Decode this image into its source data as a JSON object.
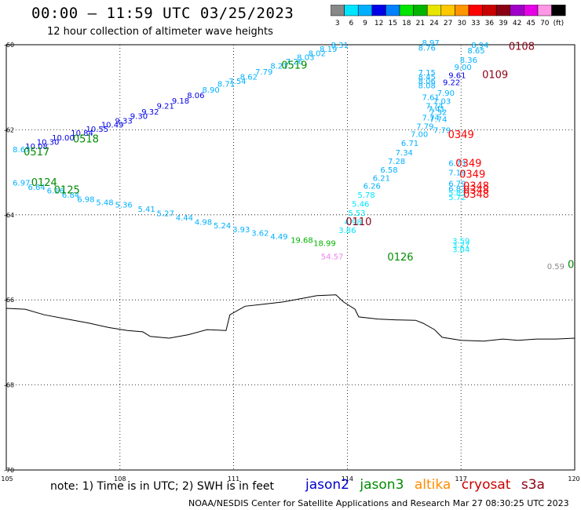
{
  "header": {
    "title": "00:00 – 11:59 UTC 03/25/2023",
    "subtitle": "12 hour collection of altimeter wave heights"
  },
  "color_scale": {
    "colors": [
      "#888888",
      "#00e5ff",
      "#00b0ff",
      "#0000e6",
      "#0082ff",
      "#00e600",
      "#00b400",
      "#e6e600",
      "#ffc800",
      "#ff9600",
      "#ff0000",
      "#c80000",
      "#8c0014",
      "#a000c8",
      "#e600e6",
      "#ff96e6",
      "#000000"
    ],
    "labels": [
      "3",
      "6",
      "9",
      "12",
      "15",
      "18",
      "21",
      "24",
      "27",
      "30",
      "33",
      "36",
      "39",
      "42",
      "45",
      "70",
      "(ft)"
    ]
  },
  "axes": {
    "x_ticks": [
      "105",
      "108",
      "111",
      "114",
      "117",
      "120"
    ],
    "y_ticks": [
      "-60",
      "-62",
      "-64",
      "-66",
      "-68",
      "-70"
    ]
  },
  "chart_data": {
    "type": "scatter",
    "x_unit": "longitude E",
    "y_unit": "latitude",
    "xlim": [
      105,
      120
    ],
    "ylim": [
      -70,
      -60
    ],
    "points": [
      {
        "x": 113.8,
        "y": -60.07,
        "label": "8.31",
        "color": "#00b0ff"
      },
      {
        "x": 113.5,
        "y": -60.17,
        "label": "8.19",
        "color": "#00b0ff"
      },
      {
        "x": 113.2,
        "y": -60.27,
        "label": "8.02",
        "color": "#00b0ff"
      },
      {
        "x": 112.9,
        "y": -60.36,
        "label": "8.03",
        "color": "#00b0ff"
      },
      {
        "x": 112.6,
        "y": -60.46,
        "label": "7.26",
        "color": "#00b0ff"
      },
      {
        "x": 112.2,
        "y": -60.56,
        "label": "8.21",
        "color": "#00b0ff"
      },
      {
        "x": 111.8,
        "y": -60.7,
        "label": "7.79",
        "color": "#00b0ff"
      },
      {
        "x": 111.4,
        "y": -60.82,
        "label": "8.62",
        "color": "#00b0ff"
      },
      {
        "x": 111.1,
        "y": -60.92,
        "label": "7.54",
        "color": "#00b0ff"
      },
      {
        "x": 110.8,
        "y": -60.99,
        "label": "8.71",
        "color": "#00b0ff"
      },
      {
        "x": 110.4,
        "y": -61.13,
        "label": "8.90",
        "color": "#00b0ff"
      },
      {
        "x": 110.0,
        "y": -61.25,
        "label": "8.06",
        "color": "#0000e6"
      },
      {
        "x": 109.6,
        "y": -61.38,
        "label": "9.18",
        "color": "#0000e6"
      },
      {
        "x": 109.2,
        "y": -61.5,
        "label": "9.21",
        "color": "#0000e6"
      },
      {
        "x": 108.8,
        "y": -61.64,
        "label": "9.32",
        "color": "#0000e6"
      },
      {
        "x": 108.5,
        "y": -61.74,
        "label": "9.30",
        "color": "#0000e6"
      },
      {
        "x": 108.1,
        "y": -61.85,
        "label": "9.33",
        "color": "#0000e6"
      },
      {
        "x": 107.8,
        "y": -61.95,
        "label": "10.49",
        "color": "#0000e6"
      },
      {
        "x": 107.4,
        "y": -62.05,
        "label": "10.55",
        "color": "#0000e6"
      },
      {
        "x": 107.0,
        "y": -62.14,
        "label": "10.84",
        "color": "#0000e6"
      },
      {
        "x": 106.5,
        "y": -62.25,
        "label": "10.00",
        "color": "#0000e6"
      },
      {
        "x": 106.1,
        "y": -62.35,
        "label": "10.30",
        "color": "#0000e6"
      },
      {
        "x": 105.8,
        "y": -62.45,
        "label": "10.08",
        "color": "#0000e6"
      },
      {
        "x": 105.4,
        "y": -62.53,
        "label": "8.67",
        "color": "#00b0ff"
      },
      {
        "x": 105.4,
        "y": -63.31,
        "label": "6.97",
        "color": "#00b0ff"
      },
      {
        "x": 105.8,
        "y": -63.41,
        "label": "6.64",
        "color": "#00b0ff"
      },
      {
        "x": 106.3,
        "y": -63.5,
        "label": "6.16",
        "color": "#00b0ff"
      },
      {
        "x": 106.7,
        "y": -63.6,
        "label": "6.84",
        "color": "#00b0ff"
      },
      {
        "x": 107.1,
        "y": -63.7,
        "label": "6.98",
        "color": "#00b0ff"
      },
      {
        "x": 107.6,
        "y": -63.77,
        "label": "5.48",
        "color": "#00b0ff"
      },
      {
        "x": 108.1,
        "y": -63.83,
        "label": "5.36",
        "color": "#00b0ff"
      },
      {
        "x": 108.7,
        "y": -63.93,
        "label": "5.41",
        "color": "#00b0ff"
      },
      {
        "x": 109.2,
        "y": -64.03,
        "label": "5.27",
        "color": "#00b0ff"
      },
      {
        "x": 109.7,
        "y": -64.13,
        "label": "4.44",
        "color": "#00b0ff"
      },
      {
        "x": 110.2,
        "y": -64.23,
        "label": "4.98",
        "color": "#00b0ff"
      },
      {
        "x": 110.7,
        "y": -64.32,
        "label": "5.24",
        "color": "#00b0ff"
      },
      {
        "x": 111.2,
        "y": -64.41,
        "label": "3.93",
        "color": "#00b0ff"
      },
      {
        "x": 111.7,
        "y": -64.49,
        "label": "3.62",
        "color": "#00b0ff"
      },
      {
        "x": 112.2,
        "y": -64.58,
        "label": "4.49",
        "color": "#00b0ff"
      },
      {
        "x": 112.8,
        "y": -64.66,
        "label": "19.68",
        "color": "#00b400"
      },
      {
        "x": 113.4,
        "y": -64.73,
        "label": "18.99",
        "color": "#00b400"
      },
      {
        "x": 117.5,
        "y": -60.07,
        "label": "8.94",
        "color": "#00b0ff"
      },
      {
        "x": 117.4,
        "y": -60.2,
        "label": "8.65",
        "color": "#00b0ff"
      },
      {
        "x": 117.2,
        "y": -60.42,
        "label": "8.36",
        "color": "#00b0ff"
      },
      {
        "x": 117.05,
        "y": -60.59,
        "label": "9.00",
        "color": "#00b0ff"
      },
      {
        "x": 116.9,
        "y": -60.78,
        "label": "9.61",
        "color": "#0000e6"
      },
      {
        "x": 116.75,
        "y": -60.95,
        "label": "9.22",
        "color": "#0000e6"
      },
      {
        "x": 116.6,
        "y": -61.2,
        "label": "7.90",
        "color": "#00b0ff"
      },
      {
        "x": 116.5,
        "y": -61.39,
        "label": "7.03",
        "color": "#00b0ff"
      },
      {
        "x": 116.35,
        "y": -61.58,
        "label": "7.41",
        "color": "#00b0ff"
      },
      {
        "x": 116.2,
        "y": -61.78,
        "label": "7.74",
        "color": "#00b0ff"
      },
      {
        "x": 116.05,
        "y": -61.98,
        "label": "7.79",
        "color": "#00b0ff"
      },
      {
        "x": 115.9,
        "y": -62.17,
        "label": "7.00",
        "color": "#00b0ff"
      },
      {
        "x": 115.65,
        "y": -62.38,
        "label": "6.71",
        "color": "#00b0ff"
      },
      {
        "x": 115.5,
        "y": -62.6,
        "label": "7.34",
        "color": "#00b0ff"
      },
      {
        "x": 115.3,
        "y": -62.8,
        "label": "7.28",
        "color": "#00b0ff"
      },
      {
        "x": 115.1,
        "y": -63.01,
        "label": "6.58",
        "color": "#00b0ff"
      },
      {
        "x": 114.9,
        "y": -63.2,
        "label": "6.21",
        "color": "#00b0ff"
      },
      {
        "x": 114.65,
        "y": -63.39,
        "label": "6.26",
        "color": "#00b0ff"
      },
      {
        "x": 114.5,
        "y": -63.6,
        "label": "5.78",
        "color": "#00e5ff"
      },
      {
        "x": 114.35,
        "y": -63.81,
        "label": "5.46",
        "color": "#00e5ff"
      },
      {
        "x": 114.25,
        "y": -64.02,
        "label": "5.53",
        "color": "#00e5ff"
      },
      {
        "x": 114.15,
        "y": -64.23,
        "label": "4.98",
        "color": "#00e5ff"
      },
      {
        "x": 114.0,
        "y": -64.43,
        "label": "3.86",
        "color": "#00e5ff"
      },
      {
        "x": 116.2,
        "y": -60.02,
        "label": "8.97",
        "color": "#00b0ff"
      },
      {
        "x": 116.1,
        "y": -60.14,
        "label": "8.76",
        "color": "#00b0ff"
      },
      {
        "x": 116.1,
        "y": -60.72,
        "label": "7.15",
        "color": "#00b0ff"
      },
      {
        "x": 116.1,
        "y": -60.82,
        "label": "8.45",
        "color": "#00b0ff"
      },
      {
        "x": 116.1,
        "y": -60.92,
        "label": "8.06",
        "color": "#00b0ff"
      },
      {
        "x": 116.1,
        "y": -61.02,
        "label": "8.08",
        "color": "#00b0ff"
      },
      {
        "x": 116.2,
        "y": -61.3,
        "label": "7.61",
        "color": "#00b0ff"
      },
      {
        "x": 116.3,
        "y": -61.5,
        "label": "7.74",
        "color": "#00b0ff"
      },
      {
        "x": 116.4,
        "y": -61.65,
        "label": "7.32",
        "color": "#00b0ff"
      },
      {
        "x": 116.4,
        "y": -61.82,
        "label": "7.74",
        "color": "#00b0ff"
      },
      {
        "x": 116.5,
        "y": -62.08,
        "label": "7.79",
        "color": "#00b0ff"
      },
      {
        "x": 116.9,
        "y": -62.85,
        "label": "6.73",
        "color": "#00b0ff"
      },
      {
        "x": 116.9,
        "y": -63.07,
        "label": "7.19",
        "color": "#00b0ff"
      },
      {
        "x": 116.9,
        "y": -63.33,
        "label": "6.79",
        "color": "#00b0ff"
      },
      {
        "x": 116.9,
        "y": -63.45,
        "label": "6.83",
        "color": "#00b0ff"
      },
      {
        "x": 116.9,
        "y": -63.55,
        "label": "5.83",
        "color": "#00e5ff"
      },
      {
        "x": 116.9,
        "y": -63.65,
        "label": "5.72",
        "color": "#00e5ff"
      },
      {
        "x": 117.0,
        "y": -64.68,
        "label": "3.59",
        "color": "#00e5ff"
      },
      {
        "x": 117.0,
        "y": -64.78,
        "label": "3.27",
        "color": "#00e5ff"
      },
      {
        "x": 117.0,
        "y": -64.88,
        "label": "3.04",
        "color": "#00e5ff"
      },
      {
        "x": 113.6,
        "y": -65.05,
        "label": "54.57",
        "color": "#ee82ee"
      },
      {
        "x": 119.5,
        "y": -65.28,
        "label": "0.59",
        "color": "#888888"
      }
    ],
    "time_labels": [
      {
        "x": 112.6,
        "y": -60.56,
        "label": "0519",
        "color": "#008c00"
      },
      {
        "x": 107.1,
        "y": -62.3,
        "label": "0518",
        "color": "#008c00"
      },
      {
        "x": 105.8,
        "y": -62.6,
        "label": "0517",
        "color": "#008c00"
      },
      {
        "x": 106.0,
        "y": -63.32,
        "label": "0124",
        "color": "#008c00"
      },
      {
        "x": 106.6,
        "y": -63.5,
        "label": "0125",
        "color": "#008c00"
      },
      {
        "x": 115.4,
        "y": -65.07,
        "label": "0126",
        "color": "#008c00"
      },
      {
        "x": 119.9,
        "y": -65.25,
        "label": "0",
        "color": "#008c00"
      },
      {
        "x": 118.6,
        "y": -60.12,
        "label": "0108",
        "color": "#8c0014"
      },
      {
        "x": 117.9,
        "y": -60.78,
        "label": "0109",
        "color": "#8c0014"
      },
      {
        "x": 114.3,
        "y": -64.24,
        "label": "0110",
        "color": "#8c0014"
      },
      {
        "x": 117.0,
        "y": -62.2,
        "label": "0349",
        "color": "#ff0000"
      },
      {
        "x": 117.2,
        "y": -62.87,
        "label": "0349",
        "color": "#ff0000"
      },
      {
        "x": 117.3,
        "y": -63.13,
        "label": "0349",
        "color": "#ff0000"
      },
      {
        "x": 117.4,
        "y": -63.4,
        "label": "0348",
        "color": "#ff0000"
      },
      {
        "x": 117.4,
        "y": -63.5,
        "label": "0348",
        "color": "#ff0000"
      },
      {
        "x": 117.4,
        "y": -63.6,
        "label": "0348",
        "color": "#ff0000"
      }
    ]
  },
  "coastline": [
    [
      105,
      -66.2
    ],
    [
      105.5,
      -66.22
    ],
    [
      106,
      -66.35
    ],
    [
      106.6,
      -66.45
    ],
    [
      107.2,
      -66.55
    ],
    [
      107.7,
      -66.65
    ],
    [
      108.2,
      -66.72
    ],
    [
      108.6,
      -66.75
    ],
    [
      108.8,
      -66.86
    ],
    [
      109.3,
      -66.9
    ],
    [
      109.8,
      -66.82
    ],
    [
      110.3,
      -66.7
    ],
    [
      110.8,
      -66.72
    ],
    [
      110.9,
      -66.35
    ],
    [
      111.3,
      -66.15
    ],
    [
      111.8,
      -66.1
    ],
    [
      112.3,
      -66.05
    ],
    [
      112.9,
      -65.95
    ],
    [
      113.2,
      -65.9
    ],
    [
      113.7,
      -65.88
    ],
    [
      113.9,
      -66.05
    ],
    [
      114.2,
      -66.22
    ],
    [
      114.3,
      -66.4
    ],
    [
      114.8,
      -66.45
    ],
    [
      115.3,
      -66.47
    ],
    [
      115.8,
      -66.48
    ],
    [
      116.0,
      -66.55
    ],
    [
      116.3,
      -66.7
    ],
    [
      116.5,
      -66.88
    ],
    [
      117.0,
      -66.95
    ],
    [
      117.6,
      -66.97
    ],
    [
      118.1,
      -66.92
    ],
    [
      118.5,
      -66.95
    ],
    [
      119.0,
      -66.92
    ],
    [
      119.5,
      -66.92
    ],
    [
      120,
      -66.9
    ]
  ],
  "footer": {
    "note": "note: 1) Time is in UTC; 2) SWH is in feet",
    "credit": "NOAA/NESDIS Center for Satellite Applications and Research    Mar 27 08:30:25 UTC 2023"
  },
  "satellites": [
    {
      "name": "jason2",
      "color": "#0000cc"
    },
    {
      "name": "jason3",
      "color": "#008c00"
    },
    {
      "name": "altika",
      "color": "#ff8c00"
    },
    {
      "name": "cryosat",
      "color": "#cc0000"
    },
    {
      "name": "s3a",
      "color": "#8c0014"
    }
  ]
}
